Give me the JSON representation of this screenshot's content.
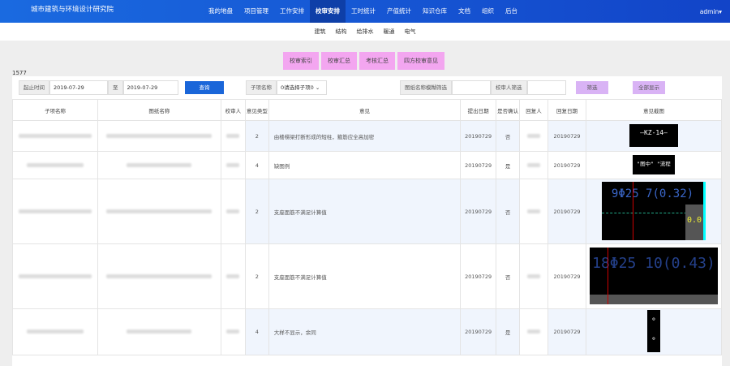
{
  "header": {
    "brand": "城市建筑与环境设计研究院",
    "menu": [
      "我的地盘",
      "项目管理",
      "工作安排",
      "校审安排",
      "工时统计",
      "产值统计",
      "知识仓库",
      "文档",
      "组织",
      "后台"
    ],
    "active": "校审安排",
    "user": "admin▾"
  },
  "subnav": [
    "建筑",
    "结构",
    "给排水",
    "暖通",
    "电气"
  ],
  "actions": [
    "校审索引",
    "校审汇总",
    "考核汇总",
    "四方校审意见"
  ],
  "count": "1577",
  "filters": {
    "start_label": "起止时间",
    "start": "2019-07-29",
    "to_label": "至",
    "end": "2019-07-29",
    "query": "查询",
    "sub_label": "子项名称",
    "sub_value": "0请选择子项0",
    "drawing_label": "图纸名称模糊筛选",
    "checker_label": "校审人筛选",
    "filter": "筛选",
    "show_all": "全部显示"
  },
  "columns": [
    "子项名称",
    "图纸名称",
    "校审人",
    "意见类型",
    "意见",
    "提出日期",
    "是否确认",
    "回复人",
    "回复日期",
    "意见截图"
  ],
  "rows": [
    {
      "type": "2",
      "opinion": "由楼梯梁打断形成的短柱，箍筋应全高加密",
      "date": "20190729",
      "confirmed": "否",
      "reply_date": "20190729",
      "shot": "KZ-14"
    },
    {
      "type": "4",
      "opinion": "缺图例",
      "date": "20190729",
      "confirmed": "是",
      "reply_date": "20190729",
      "shot": "\"图中\"  \"流程"
    },
    {
      "type": "2",
      "opinion": "支座面筋不满足计算值",
      "date": "20190729",
      "confirmed": "否",
      "reply_date": "20190729",
      "shot": "9Φ25 7(0.32)"
    },
    {
      "type": "2",
      "opinion": "支座面筋不满足计算值",
      "date": "20190729",
      "confirmed": "否",
      "reply_date": "20190729",
      "shot": "18Φ25 10(0.43)"
    },
    {
      "type": "4",
      "opinion": "大样不显示，余同",
      "date": "20190729",
      "confirmed": "是",
      "reply_date": "20190729",
      "shot": ""
    }
  ],
  "colors": {
    "nav": "#1a6ae0",
    "primary": "#1a66d9",
    "pink": "#f3a6f0",
    "lavender": "#d9b3f5"
  }
}
